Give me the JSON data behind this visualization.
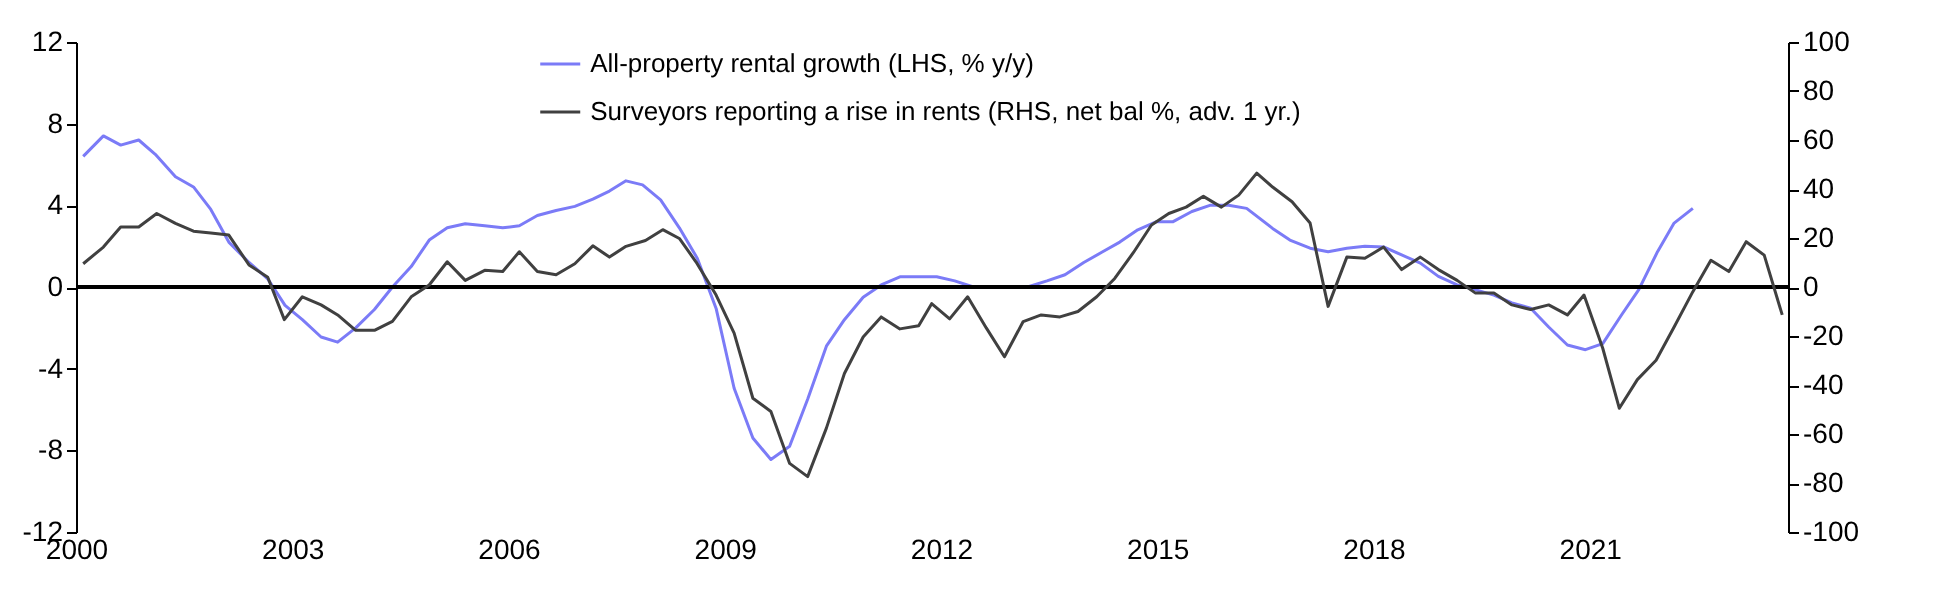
{
  "chart_data": {
    "type": "line",
    "xlim": [
      2000,
      2023.75
    ],
    "xticks": [
      2000,
      2003,
      2006,
      2009,
      2012,
      2015,
      2018,
      2021
    ],
    "ylim": [
      -12,
      12
    ],
    "yticks": [
      -12,
      -8,
      -4,
      0,
      4,
      8,
      12
    ],
    "y2lim": [
      -100,
      100
    ],
    "y2ticks": [
      -100,
      -80,
      -60,
      -40,
      -20,
      0,
      20,
      40,
      60,
      80,
      100
    ],
    "legend": "top",
    "grid": false,
    "marker": "none",
    "line_style": "solid",
    "ref_lines": [
      {
        "axis": "y",
        "value": 0,
        "color": "#000000"
      }
    ],
    "series": [
      {
        "name": "All-property rental growth (LHS, % y/y)",
        "color": "#7b7bf7",
        "axis": "y",
        "x": [
          2000.1,
          2000.38,
          2000.62,
          2000.87,
          2001.1,
          2001.38,
          2001.63,
          2001.87,
          2002.12,
          2002.4,
          2002.66,
          2002.9,
          2003.14,
          2003.4,
          2003.63,
          2003.88,
          2004.14,
          2004.39,
          2004.65,
          2004.9,
          2005.15,
          2005.4,
          2005.67,
          2005.92,
          2006.15,
          2006.4,
          2006.66,
          2006.92,
          2007.17,
          2007.4,
          2007.63,
          2007.86,
          2008.11,
          2008.37,
          2008.62,
          2008.88,
          2009.13,
          2009.39,
          2009.64,
          2009.9,
          2010.15,
          2010.41,
          2010.66,
          2010.92,
          2011.17,
          2011.43,
          2011.69,
          2011.94,
          2012.19,
          2012.45,
          2012.7,
          2012.96,
          2013.2,
          2013.47,
          2013.72,
          2013.98,
          2014.23,
          2014.48,
          2014.73,
          2014.99,
          2015.22,
          2015.48,
          2015.73,
          2015.99,
          2016.24,
          2016.6,
          2016.84,
          2017.12,
          2017.37,
          2017.63,
          2017.88,
          2018.14,
          2018.39,
          2018.65,
          2018.9,
          2019.16,
          2019.41,
          2019.67,
          2019.92,
          2020.18,
          2020.43,
          2020.69,
          2020.94,
          2021.18,
          2021.44,
          2021.68,
          2021.94,
          2022.17,
          2022.43
        ],
        "values": [
          6.4,
          7.4,
          6.95,
          7.2,
          6.5,
          5.4,
          4.9,
          3.8,
          2.2,
          1.2,
          0.4,
          -0.9,
          -1.6,
          -2.45,
          -2.7,
          -2.0,
          -1.1,
          0.0,
          1.0,
          2.3,
          2.9,
          3.1,
          3.0,
          2.9,
          3.0,
          3.5,
          3.75,
          3.95,
          4.3,
          4.7,
          5.2,
          5.0,
          4.27,
          2.9,
          1.4,
          -1.05,
          -4.96,
          -7.4,
          -8.45,
          -7.8,
          -5.5,
          -2.9,
          -1.6,
          -0.5,
          0.1,
          0.5,
          0.5,
          0.5,
          0.3,
          0.0,
          0.0,
          0.0,
          0.0,
          0.3,
          0.6,
          1.2,
          1.7,
          2.2,
          2.8,
          3.2,
          3.2,
          3.7,
          4.0,
          4.0,
          3.85,
          2.87,
          2.3,
          1.9,
          1.73,
          1.9,
          2.0,
          1.96,
          1.57,
          1.17,
          0.52,
          0.1,
          -0.13,
          -0.4,
          -0.78,
          -1.04,
          -1.96,
          -2.84,
          -3.07,
          -2.77,
          -1.37,
          -0.13,
          1.73,
          3.13,
          3.85
        ]
      },
      {
        "name": "Surveyors reporting a rise in rents (RHS, net bal %, adv. 1 yr.)",
        "color": "#404040",
        "axis": "y2",
        "x": [
          2000.1,
          2000.38,
          2000.62,
          2000.87,
          2001.12,
          2001.38,
          2001.63,
          2001.87,
          2002.12,
          2002.4,
          2002.66,
          2002.89,
          2003.14,
          2003.4,
          2003.63,
          2003.88,
          2004.14,
          2004.39,
          2004.65,
          2004.9,
          2005.15,
          2005.4,
          2005.67,
          2005.92,
          2006.15,
          2006.4,
          2006.66,
          2006.92,
          2007.17,
          2007.4,
          2007.63,
          2007.9,
          2008.14,
          2008.37,
          2008.6,
          2008.88,
          2009.13,
          2009.39,
          2009.64,
          2009.9,
          2010.15,
          2010.41,
          2010.66,
          2010.92,
          2011.17,
          2011.43,
          2011.69,
          2011.87,
          2012.12,
          2012.37,
          2012.63,
          2012.88,
          2013.14,
          2013.39,
          2013.65,
          2013.9,
          2014.16,
          2014.41,
          2014.67,
          2014.92,
          2015.16,
          2015.4,
          2015.64,
          2015.89,
          2016.13,
          2016.38,
          2016.6,
          2016.87,
          2017.12,
          2017.37,
          2017.63,
          2017.88,
          2018.14,
          2018.39,
          2018.65,
          2018.9,
          2019.16,
          2019.41,
          2019.67,
          2019.92,
          2020.18,
          2020.43,
          2020.69,
          2020.92,
          2021.18,
          2021.41,
          2021.66,
          2021.92,
          2022.17,
          2022.43,
          2022.68,
          2022.93,
          2023.17,
          2023.42,
          2023.67
        ],
        "values": [
          9.5,
          16.3,
          24.5,
          24.5,
          30,
          26,
          22.8,
          22,
          21.2,
          9,
          4,
          -13.3,
          -4,
          -7.3,
          -11.4,
          -17.7,
          -17.7,
          -14,
          -4,
          0.8,
          10.3,
          2.7,
          6.8,
          6.3,
          14.4,
          6.3,
          5,
          9.5,
          16.8,
          12.2,
          16.6,
          19,
          23.4,
          19.8,
          10.3,
          -3.3,
          -18.8,
          -45.4,
          -50.8,
          -72,
          -77.4,
          -57.6,
          -35.3,
          -20.4,
          -12.2,
          -17.1,
          -15.8,
          -6.8,
          -13,
          -4,
          -16.8,
          -28.5,
          -14.1,
          -11.4,
          -12.2,
          -10,
          -4,
          3.5,
          14.1,
          25.3,
          30,
          32.6,
          37,
          32.6,
          37.5,
          46.5,
          40.8,
          34.8,
          26.1,
          -7.9,
          12.2,
          11.7,
          16.3,
          7.1,
          12.2,
          7.1,
          2.7,
          -2.4,
          -2.4,
          -7.3,
          -9.2,
          -7.3,
          -11.4,
          -3.3,
          -25,
          -49.5,
          -37.8,
          -29.9,
          -16.3,
          -1.9,
          10.9,
          6.3,
          18.5,
          13,
          -11.4
        ]
      }
    ]
  }
}
